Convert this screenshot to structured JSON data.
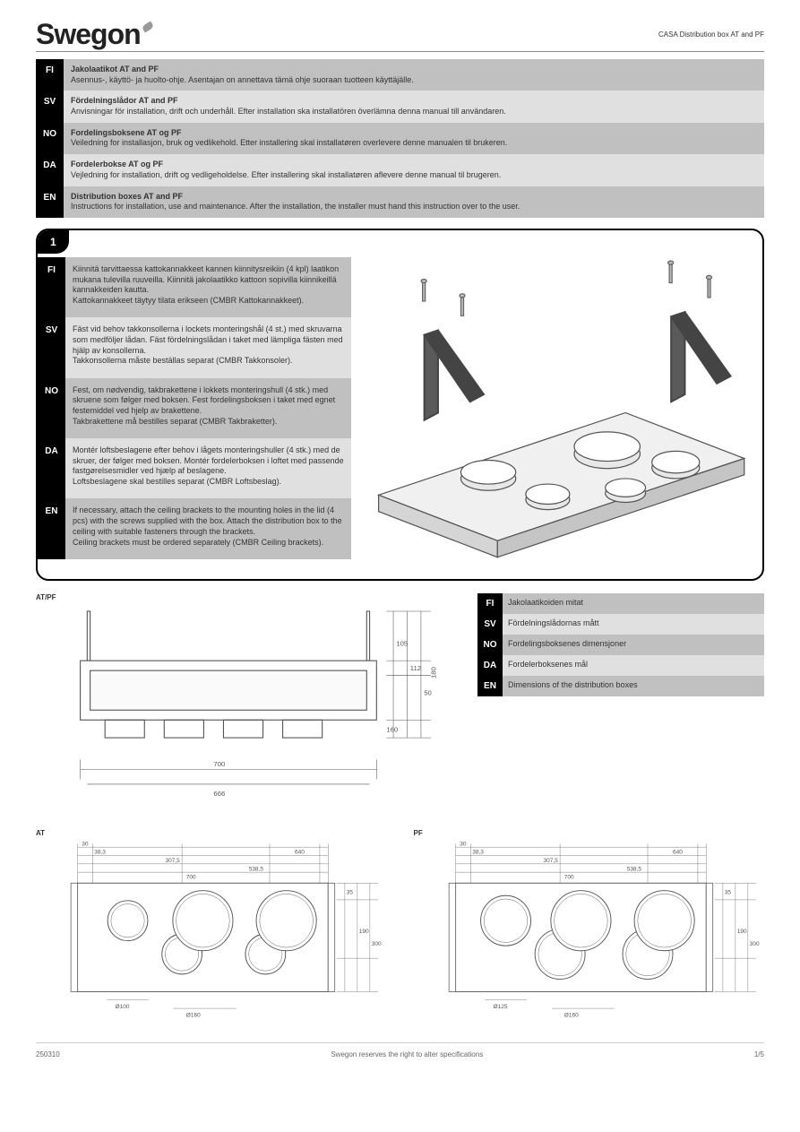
{
  "header": {
    "subtitle": "CASA Distribution box AT and PF"
  },
  "intro": [
    {
      "code": "FI",
      "title": "Jakolaatikot AT and PF",
      "body": "Asennus-, käyttö- ja huolto-ohje. Asentajan on annettava tämä ohje suoraan tuotteen käyttäjälle.",
      "shade": "dark"
    },
    {
      "code": "SV",
      "title": "Fördelningslådor AT and PF",
      "body": "Anvisningar för installation, drift och underhåll. Efter installation ska installatören överlämna denna manual till användaren.",
      "shade": "light"
    },
    {
      "code": "NO",
      "title": "Fordelingsboksene AT og PF",
      "body": "Veiledning for installasjon, bruk og vedlikehold. Etter installering skal installatøren overlevere denne manualen til brukeren.",
      "shade": "dark"
    },
    {
      "code": "DA",
      "title": "Fordelerbokse AT og PF",
      "body": "Vejledning for installation, drift og vedligeholdelse. Efter installering skal installatøren aflevere denne manual til brugeren.",
      "shade": "light"
    },
    {
      "code": "EN",
      "title": "Distribution boxes AT and PF",
      "body": "Instructions for installation, use and maintenance. After the installation, the installer must hand this instruction over to the user.",
      "shade": "dark"
    }
  ],
  "diagram1": {
    "tab": "1",
    "rows": [
      {
        "code": "FI",
        "shade": "dark",
        "lines": [
          "Kiinnitä tarvittaessa kattokannakkeet kannen kiinnitysreikiin (4 kpl) laatikon mukana tulevilla ruuveilla. Kiinnitä jakolaatikko kattoon sopivilla kiinnikeillä kannakkeiden kautta.",
          "Kattokannakkeet täytyy tilata erikseen (CMBR Kattokannakkeet)."
        ]
      },
      {
        "code": "SV",
        "shade": "light",
        "lines": [
          "Fäst vid behov takkonsollerna i lockets monteringshål (4 st.) med skruvarna som medföljer lådan. Fäst fördelningslådan i taket med lämpliga fästen med hjälp av konsollerna.",
          "Takkonsollerna måste beställas separat (CMBR Takkonsoler)."
        ]
      },
      {
        "code": "NO",
        "shade": "dark",
        "lines": [
          "Fest, om nødvendig, takbrakettene i lokkets monteringshull (4 stk.) med skruene som følger med boksen. Fest fordelingsboksen i taket med egnet festemiddel ved hjelp av brakettene.",
          "Takbrakettene må bestilles separat (CMBR Takbraketter)."
        ]
      },
      {
        "code": "DA",
        "shade": "light",
        "lines": [
          "Montér loftsbeslagene efter behov i lågets monteringshuller (4 stk.) med de skruer, der følger med boksen. Montér fordelerboksen i loftet med passende fastgørelsesmidler ved hjælp af beslagene.",
          "Loftsbeslagene skal bestilles separat (CMBR Loftsbeslag)."
        ]
      },
      {
        "code": "EN",
        "shade": "dark",
        "lines": [
          "If necessary, attach the ceiling brackets to the mounting holes in the lid (4 pcs) with the screws supplied with the box. Attach the distribution box to the ceiling with suitable fasteners through the brackets.",
          "Ceiling brackets must be ordered separately (CMBR Ceiling brackets)."
        ]
      }
    ]
  },
  "midSection": {
    "rows": [
      {
        "code": "FI",
        "text": "Jakolaatikoiden mitat",
        "shade": "dark"
      },
      {
        "code": "SV",
        "text": "Fördelningslådornas mått",
        "shade": "light"
      },
      {
        "code": "NO",
        "text": "Fordelingsboksenes dimensjoner",
        "shade": "dark"
      },
      {
        "code": "DA",
        "text": "Fordelerboksenes mål",
        "shade": "light"
      },
      {
        "code": "EN",
        "text": "Dimensions of the distribution boxes",
        "shade": "dark"
      }
    ]
  },
  "sideView": {
    "label": "AT/PF",
    "dims": {
      "d1": "180",
      "d2": "112",
      "d3": "50",
      "d4": "105",
      "d5": "160",
      "d6": "666",
      "d7": "700"
    },
    "colors": {
      "stroke": "#555555",
      "fill": "#ffffff",
      "bg": "#f5f5f5"
    }
  },
  "topView1": {
    "label": "AT",
    "dims": {
      "w1": "30",
      "w2": "38,3",
      "w3": "307,5",
      "w4": "538,5",
      "w5": "640",
      "w6": "700",
      "h1": "35",
      "h2": "190",
      "h3": "300",
      "hole_small": "100",
      "hole_large": "160"
    },
    "colors": {
      "stroke": "#555555",
      "fill": "#ffffff"
    }
  },
  "topView2": {
    "label": "PF",
    "dims": {
      "w1": "30",
      "w2": "38,3",
      "w3": "307,5",
      "w4": "538,5",
      "w5": "640",
      "w6": "700",
      "h1": "35",
      "h2": "190",
      "h3": "300",
      "hole_small": "125",
      "hole_large": "160"
    },
    "colors": {
      "stroke": "#555555",
      "fill": "#ffffff"
    }
  },
  "footer": {
    "left": "Swegon reserves the right to alter specifications",
    "right": "1/5",
    "date": "250310"
  }
}
